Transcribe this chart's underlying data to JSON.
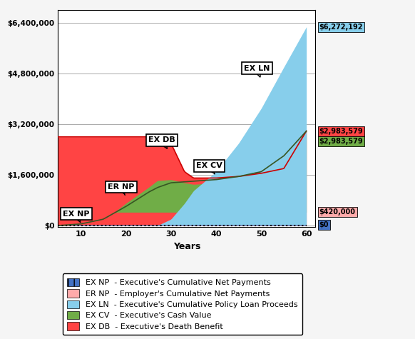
{
  "title": "",
  "xlabel": "Years",
  "ylabel": "",
  "xlim": [
    5,
    62
  ],
  "ylim": [
    -50000,
    6800000
  ],
  "yticks": [
    0,
    1600000,
    3200000,
    4800000,
    6400000
  ],
  "ytick_labels": [
    "$0",
    "$1,600,000",
    "$3,200,000",
    "$4,800,000",
    "$6,400,000"
  ],
  "xticks": [
    10,
    20,
    30,
    40,
    50,
    60
  ],
  "bg_color": "#f5f5f5",
  "plot_bg_color": "#ffffff",
  "grid_color": "#aaaaaa",
  "ex_np_color": "#4472c4",
  "er_np_color": "#ffaaaa",
  "ex_ln_color": "#87ceeb",
  "ex_cv_color": "#70ad47",
  "ex_db_color": "#ff4444",
  "ex_db_line_color": "#cc0000",
  "ex_cv_line_color": "#375623",
  "legend_items": [
    {
      "label": "EX NP  - Executive's Cumulative Net Payments",
      "color": "#4472c4",
      "hatch": "||"
    },
    {
      "label": "ER NP  - Employer's Cumulative Net Payments",
      "color": "#ffaaaa",
      "hatch": ""
    },
    {
      "label": "EX LN  - Executive's Cumulative Policy Loan Proceeds",
      "color": "#87ceeb",
      "hatch": ""
    },
    {
      "label": "EX CV  - Executive's Cash Value",
      "color": "#70ad47",
      "hatch": ""
    },
    {
      "label": "EX DB  - Executive's Death Benefit",
      "color": "#ff4444",
      "hatch": ""
    }
  ]
}
